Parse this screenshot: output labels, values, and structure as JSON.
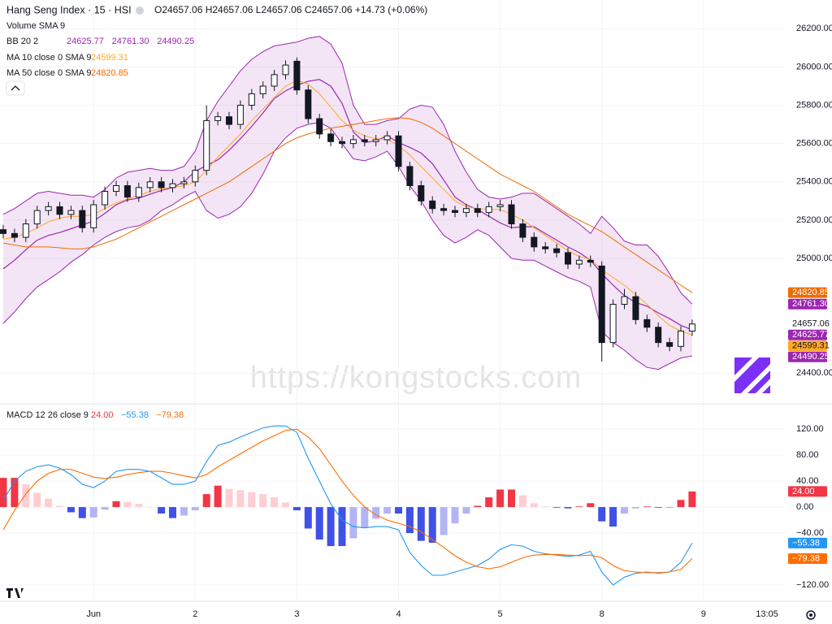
{
  "header": {
    "symbol": "Hang Seng Index · 15 · HSI",
    "ohlc": "O24657.06 H24657.06 L24657.06 C24657.06 +14.73 (+0.06%)",
    "volume": "Volume SMA 9"
  },
  "watermark": "https://kongstocks.com",
  "chart_data": [
    {
      "type": "candlestick",
      "categories": [
        null,
        null,
        null,
        null,
        null,
        null,
        null,
        null,
        "Jun",
        null,
        null,
        null,
        null,
        null,
        null,
        null,
        null,
        "2",
        null,
        null,
        null,
        null,
        null,
        null,
        null,
        null,
        "3",
        null,
        null,
        null,
        null,
        null,
        null,
        null,
        null,
        "4",
        null,
        null,
        null,
        null,
        null,
        null,
        null,
        null,
        "5",
        null,
        null,
        null,
        null,
        null,
        null,
        null,
        null,
        "8",
        null,
        null,
        null,
        null,
        null,
        null,
        null,
        null,
        "9"
      ],
      "cursor_time": "13:05",
      "open": [
        25150,
        25130,
        25110,
        25180,
        25250,
        25270,
        25230,
        25250,
        25160,
        25280,
        25350,
        25380,
        25320,
        25370,
        25400,
        25370,
        25390,
        25400,
        25460,
        25720,
        25740,
        25700,
        25800,
        25860,
        25900,
        25960,
        26030,
        25880,
        25730,
        25650,
        25610,
        25600,
        25620,
        25610,
        25620,
        25640,
        25480,
        25380,
        25300,
        25260,
        25250,
        25240,
        25260,
        25240,
        25270,
        25280,
        25180,
        25110,
        25060,
        25050,
        25030,
        24970,
        24990,
        24960,
        24560,
        24760,
        24800,
        24680,
        24640,
        24560,
        24540,
        24620,
        null
      ],
      "high": [
        25175,
        25155,
        25205,
        25275,
        25295,
        25295,
        25275,
        25275,
        25305,
        25375,
        25405,
        25405,
        25395,
        25425,
        25425,
        25415,
        25425,
        25485,
        25800,
        25765,
        25765,
        25825,
        25885,
        25925,
        25985,
        26035,
        26050,
        25905,
        25755,
        25675,
        25635,
        25645,
        25645,
        25645,
        25665,
        25665,
        25505,
        25405,
        25325,
        25285,
        25275,
        25285,
        25285,
        25295,
        25305,
        25305,
        25205,
        25135,
        25085,
        25075,
        25055,
        25015,
        25015,
        24985,
        24785,
        24840,
        24825,
        24705,
        24665,
        24585,
        24645,
        24680,
        null
      ],
      "low": [
        25105,
        25085,
        25085,
        25155,
        25225,
        25205,
        25205,
        25135,
        25135,
        25255,
        25325,
        25295,
        25295,
        25345,
        25345,
        25345,
        25365,
        25375,
        25435,
        25695,
        25675,
        25675,
        25775,
        25835,
        25875,
        25935,
        25855,
        25705,
        25625,
        25585,
        25575,
        25575,
        25585,
        25585,
        25595,
        25455,
        25355,
        25275,
        25235,
        25225,
        25215,
        25215,
        25215,
        25215,
        25245,
        25155,
        25085,
        25035,
        25025,
        25005,
        24945,
        24945,
        24955,
        24460,
        24535,
        24735,
        24655,
        24615,
        24535,
        24515,
        24515,
        24595,
        null
      ],
      "close": [
        25130,
        25110,
        25180,
        25250,
        25270,
        25230,
        25250,
        25160,
        25280,
        25350,
        25380,
        25320,
        25370,
        25400,
        25370,
        25390,
        25400,
        25460,
        25720,
        25740,
        25700,
        25800,
        25860,
        25900,
        25960,
        26010,
        25880,
        25730,
        25650,
        25610,
        25600,
        25620,
        25610,
        25620,
        25640,
        25480,
        25380,
        25300,
        25260,
        25250,
        25240,
        25260,
        25240,
        25270,
        25280,
        25180,
        25110,
        25060,
        25050,
        25030,
        24970,
        24990,
        24980,
        24560,
        24760,
        24800,
        24680,
        24640,
        24560,
        24540,
        24620,
        24657.06,
        null
      ],
      "up_color": "#ffffff",
      "down_color": "#131722",
      "wick_color": "#131722",
      "price_label": "24657.06",
      "ylim": [
        24240,
        26350
      ],
      "yticks": [
        {
          "value": 24400,
          "label": "24400.00"
        },
        {
          "value": 25000,
          "label": "25000.00"
        },
        {
          "value": 25200,
          "label": "25200.00"
        },
        {
          "value": 25400,
          "label": "25400.00"
        },
        {
          "value": 25600,
          "label": "25600.00"
        },
        {
          "value": 25800,
          "label": "25800.00"
        },
        {
          "value": 26000,
          "label": "26000.00"
        },
        {
          "value": 26200,
          "label": "26200.00"
        }
      ],
      "grid": true,
      "overlays": [
        {
          "name": "BB 20 2",
          "fill": "rgba(156,39,176,0.12)",
          "lines": [
            {
              "color": "#9c27b0",
              "last_label": "24625.77",
              "values": [
                24945,
                24990,
                25045,
                25095,
                25120,
                25135,
                25155,
                25175,
                25195,
                25235,
                25280,
                25305,
                25315,
                25335,
                25355,
                25370,
                25400,
                25455,
                25485,
                25515,
                25565,
                25625,
                25690,
                25760,
                25835,
                25875,
                25905,
                25925,
                25935,
                25900,
                25810,
                25660,
                25605,
                25615,
                25640,
                25605,
                25580,
                25550,
                25495,
                25410,
                25320,
                25280,
                25255,
                25220,
                25185,
                25160,
                25165,
                25165,
                25130,
                25095,
                25060,
                25030,
                24990,
                24920,
                24860,
                24805,
                24770,
                24750,
                24715,
                24685,
                24650,
                24625.77,
                null
              ]
            },
            {
              "color": "#9c27b0",
              "last_label": "24761.30",
              "values": [
                25230,
                25260,
                25300,
                25340,
                25350,
                25340,
                25330,
                25330,
                25320,
                25360,
                25420,
                25450,
                25460,
                25470,
                25460,
                25460,
                25480,
                25560,
                25720,
                25820,
                25900,
                25980,
                26040,
                26080,
                26110,
                26120,
                26130,
                26150,
                26160,
                26120,
                26020,
                25800,
                25700,
                25700,
                25720,
                25730,
                25780,
                25800,
                25790,
                25700,
                25560,
                25450,
                25360,
                25320,
                25310,
                25320,
                25340,
                25340,
                25300,
                25260,
                25220,
                25180,
                25130,
                25220,
                25160,
                25090,
                25070,
                25070,
                25010,
                24920,
                24820,
                24761.3,
                null
              ]
            },
            {
              "color": "#9c27b0",
              "last_label": "24490.25",
              "values": [
                24660,
                24720,
                24790,
                24850,
                24890,
                24930,
                24980,
                25020,
                25070,
                25110,
                25140,
                25160,
                25170,
                25200,
                25250,
                25280,
                25320,
                25350,
                25250,
                25210,
                25230,
                25270,
                25340,
                25440,
                25560,
                25630,
                25680,
                25700,
                25710,
                25680,
                25600,
                25520,
                25510,
                25530,
                25560,
                25480,
                25380,
                25300,
                25200,
                25120,
                25080,
                25110,
                25150,
                25120,
                25060,
                25000,
                24990,
                24990,
                24960,
                24930,
                24900,
                24880,
                24850,
                24620,
                24560,
                24520,
                24470,
                24430,
                24420,
                24450,
                24480,
                24490.25,
                null
              ]
            }
          ]
        },
        {
          "name": "MA 10 close 0 SMA 9",
          "lines": [
            {
              "color": "#ffa726",
              "last_label": "24599.31",
              "values": [
                25100,
                25110,
                25130,
                25160,
                25190,
                25210,
                25220,
                25220,
                25230,
                25260,
                25290,
                25310,
                25330,
                25350,
                25365,
                25370,
                25380,
                25400,
                25460,
                25530,
                25590,
                25650,
                25720,
                25780,
                25840,
                25900,
                25930,
                25910,
                25860,
                25790,
                25720,
                25670,
                25640,
                25625,
                25620,
                25590,
                25540,
                25480,
                25420,
                25360,
                25300,
                25270,
                25260,
                25255,
                25255,
                25230,
                25200,
                25160,
                25120,
                25080,
                25040,
                25010,
                24995,
                24940,
                24900,
                24860,
                24810,
                24760,
                24700,
                24650,
                24620,
                24599.31,
                null
              ]
            }
          ]
        },
        {
          "name": "MA 50 close 0 SMA 9",
          "lines": [
            {
              "color": "#ef6c00",
              "last_label": "24820.85",
              "values": [
                25080,
                25070,
                25060,
                25060,
                25060,
                25055,
                25050,
                25050,
                25060,
                25080,
                25100,
                25130,
                25160,
                25190,
                25220,
                25250,
                25280,
                25310,
                25340,
                25370,
                25400,
                25440,
                25480,
                25520,
                25560,
                25600,
                25630,
                25650,
                25665,
                25680,
                25690,
                25700,
                25710,
                25720,
                25730,
                25735,
                25730,
                25710,
                25680,
                25640,
                25600,
                25560,
                25520,
                25480,
                25440,
                25410,
                25380,
                25350,
                25310,
                25270,
                25230,
                25200,
                25170,
                25140,
                25100,
                25060,
                25020,
                24980,
                24940,
                24900,
                24860,
                24820.85,
                null
              ]
            }
          ]
        }
      ]
    },
    {
      "type": "macd",
      "title": "MACD 12 26 close 9",
      "ylim": [
        -145,
        159
      ],
      "yticks": [
        {
          "value": 120,
          "label": "120.00"
        },
        {
          "value": 80,
          "label": "80.00"
        },
        {
          "value": 40,
          "label": "40.00"
        },
        {
          "value": 0,
          "label": "0.00"
        },
        {
          "value": -40,
          "label": "−40.00"
        },
        {
          "value": -120,
          "label": "−120.00"
        }
      ],
      "grid": true,
      "histogram": {
        "colors": {
          "up_strong": "#f23645",
          "up_weak": "#ffcdd2",
          "down_strong": "#3f51e6",
          "down_weak": "#b2b5f5"
        },
        "last_label": "24.00",
        "values": [
          45,
          45,
          35,
          22,
          13,
          2,
          -8,
          -17,
          -16,
          -4,
          9,
          8,
          5,
          0,
          -10,
          -17,
          -13,
          -5,
          20,
          33,
          28,
          26,
          23,
          20,
          15,
          7,
          -5,
          -33,
          -50,
          -60,
          -60,
          -48,
          -32,
          -18,
          -10,
          -10,
          -40,
          -52,
          -55,
          -43,
          -25,
          -10,
          2,
          15,
          27,
          27,
          18,
          6,
          1,
          -1,
          -2,
          1,
          6,
          -22,
          -30,
          -10,
          -2,
          1,
          -1,
          0,
          11,
          24,
          null
        ]
      },
      "lines": [
        {
          "color": "#2196f3",
          "last_label": "−55.38",
          "values": [
            10,
            40,
            55,
            62,
            65,
            60,
            50,
            35,
            30,
            40,
            55,
            58,
            58,
            55,
            45,
            35,
            35,
            40,
            70,
            95,
            100,
            108,
            115,
            122,
            125,
            125,
            115,
            75,
            40,
            5,
            -20,
            -30,
            -32,
            -30,
            -30,
            -35,
            -70,
            -90,
            -105,
            -105,
            -100,
            -95,
            -90,
            -80,
            -65,
            -58,
            -60,
            -68,
            -72,
            -74,
            -76,
            -74,
            -68,
            -100,
            -120,
            -108,
            -102,
            -100,
            -102,
            -100,
            -85,
            -55.38,
            null
          ]
        },
        {
          "color": "#ff6d00",
          "last_label": "−79.38",
          "values": [
            -35,
            -5,
            20,
            40,
            52,
            58,
            58,
            52,
            46,
            44,
            46,
            50,
            53,
            55,
            55,
            52,
            48,
            45,
            50,
            62,
            72,
            82,
            92,
            102,
            110,
            118,
            120,
            108,
            90,
            65,
            40,
            18,
            0,
            -12,
            -20,
            -25,
            -30,
            -38,
            -50,
            -62,
            -75,
            -85,
            -92,
            -95,
            -92,
            -85,
            -78,
            -74,
            -73,
            -73,
            -74,
            -75,
            -74,
            -78,
            -90,
            -98,
            -100,
            -101,
            -101,
            -100,
            -96,
            -79.38,
            null
          ]
        }
      ]
    }
  ]
}
